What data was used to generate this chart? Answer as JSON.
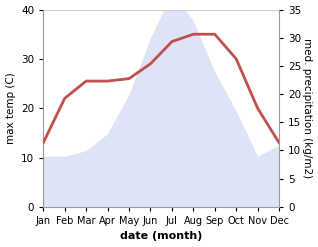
{
  "months": [
    "Jan",
    "Feb",
    "Mar",
    "Apr",
    "May",
    "Jun",
    "Jul",
    "Aug",
    "Sep",
    "Oct",
    "Nov",
    "Dec"
  ],
  "temperature": [
    13,
    22,
    25.5,
    25.5,
    26,
    29,
    33.5,
    35,
    35,
    30,
    20,
    13
  ],
  "precipitation": [
    9,
    9,
    10,
    13,
    20,
    30,
    38,
    33,
    24,
    17,
    9,
    11
  ],
  "temp_ylim": [
    0,
    40
  ],
  "precip_ylim": [
    0,
    35
  ],
  "temp_color": "#c0504d",
  "precip_fill_color": "#c5cdf0",
  "precip_fill_alpha": 0.55,
  "xlabel": "date (month)",
  "ylabel_left": "max temp (C)",
  "ylabel_right": "med. precipitation (kg/m2)",
  "temp_linewidth": 2.0,
  "bg_color": "#ffffff",
  "left_yticks": [
    0,
    10,
    20,
    30,
    40
  ],
  "right_yticks": [
    0,
    5,
    10,
    15,
    20,
    25,
    30,
    35
  ]
}
